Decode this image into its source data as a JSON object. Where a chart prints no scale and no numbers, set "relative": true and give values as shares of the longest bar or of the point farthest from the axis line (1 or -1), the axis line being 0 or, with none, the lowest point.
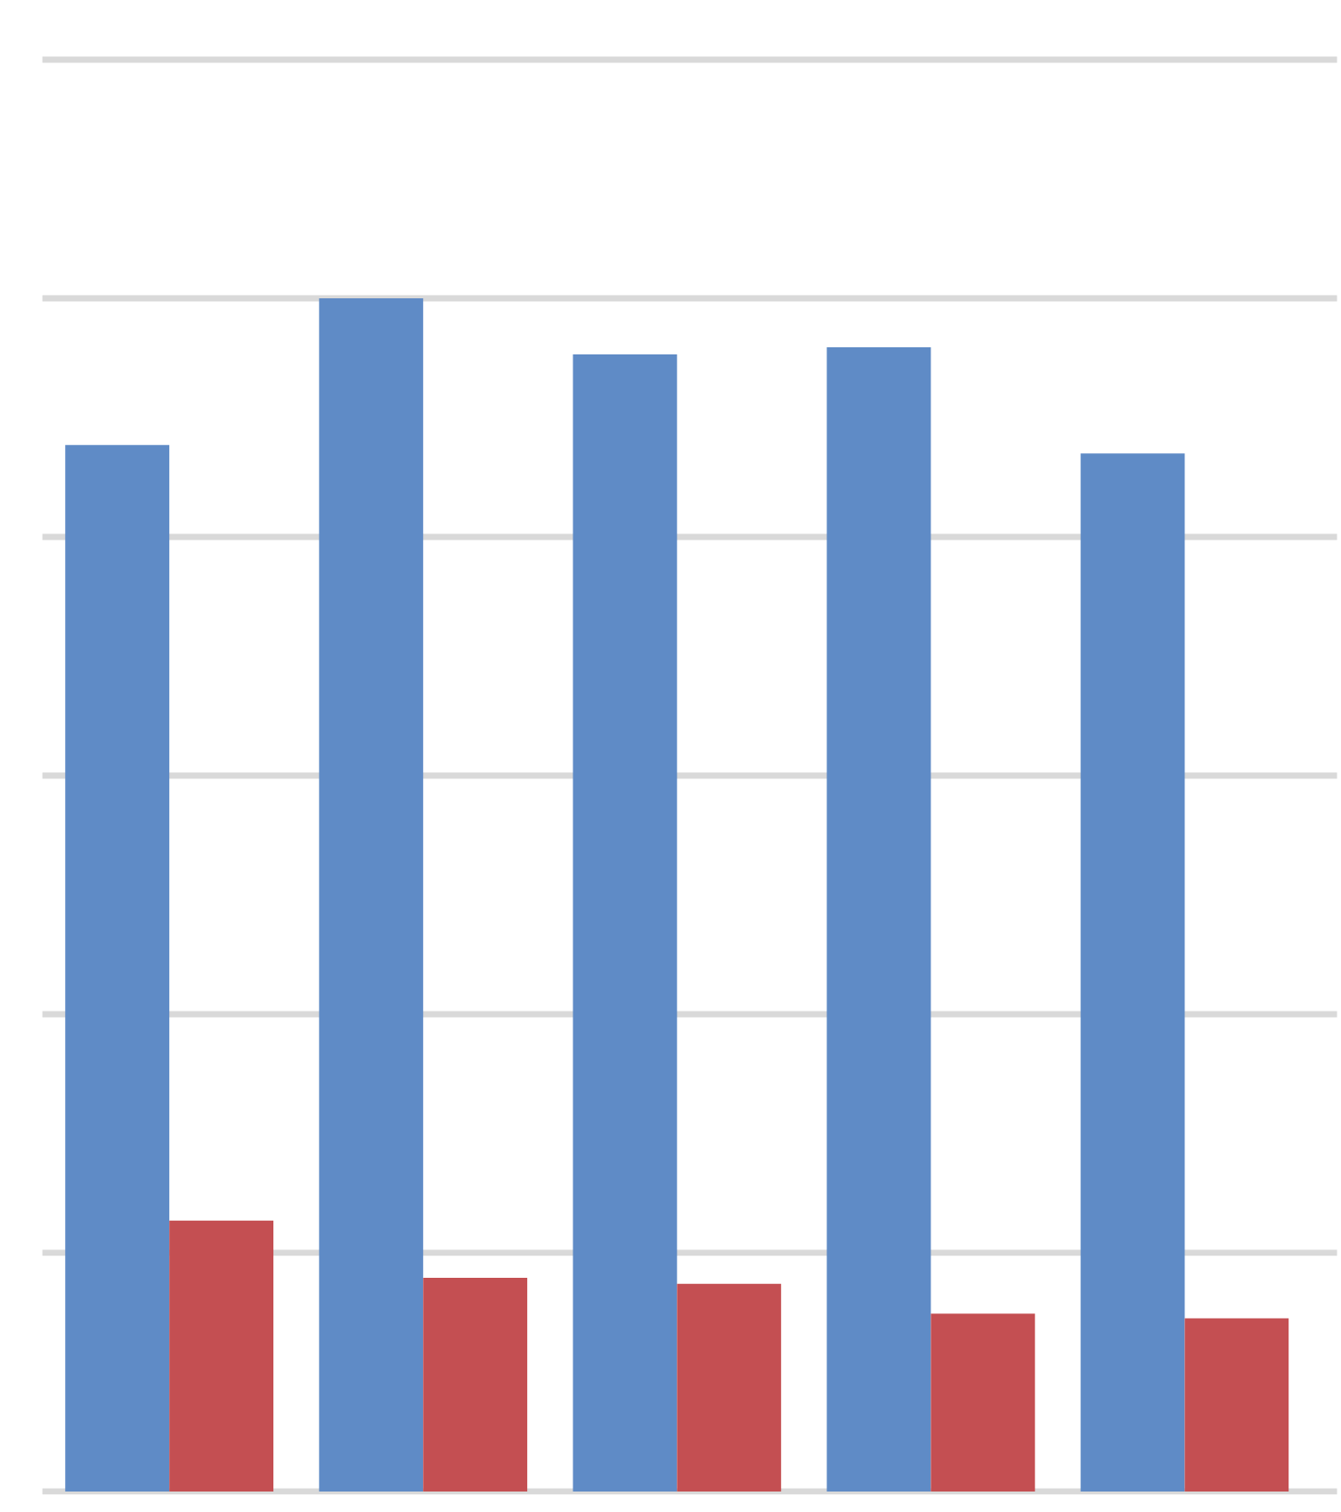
{
  "chart_data": {
    "type": "bar",
    "relative": true,
    "grid": "y",
    "categories": [
      null,
      null,
      null,
      null,
      null
    ],
    "series": [
      {
        "color": "#5f8bc6",
        "values": [
          0.877,
          1,
          0.953,
          0.959,
          0.87
        ]
      },
      {
        "color": "#c44f52",
        "values": [
          0.227,
          0.179,
          0.174,
          0.149,
          0.145
        ]
      }
    ]
  }
}
